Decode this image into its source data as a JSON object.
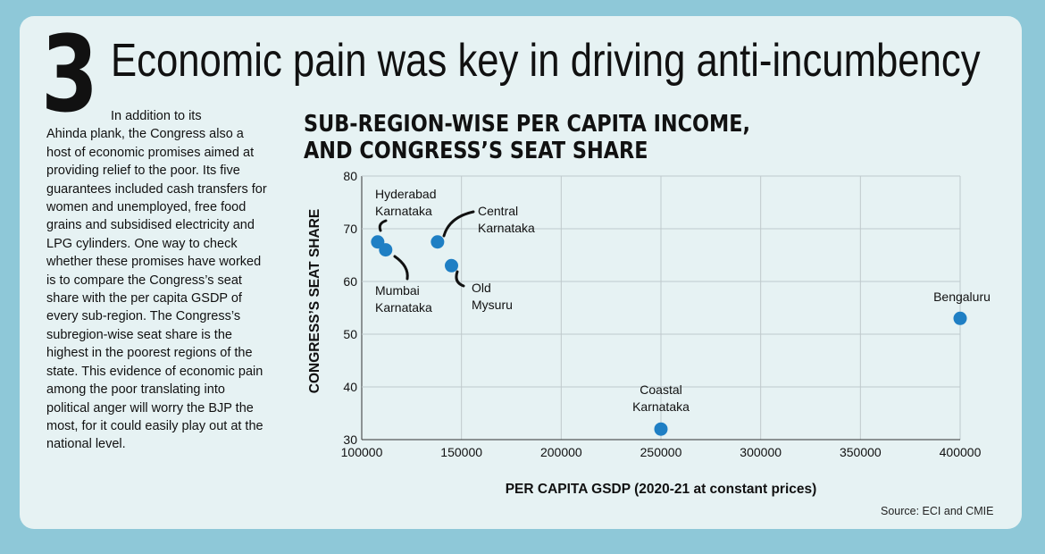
{
  "section_number": "3",
  "headline": "Economic pain was key in driving anti-incumbency",
  "body": {
    "first_line": "In addition to its",
    "rest": "Ahinda plank, the Congress also a host of economic promises aimed at providing relief to the poor. Its five guarantees included cash transfers for women and unemployed, free food grains and subsidised electricity and LPG cylinders. One way to check whether these promises have worked is to compare the Congress’s seat share with the per capita GSDP of every sub-region. The Congress’s subregion-wise seat share is the highest in the poorest regions of the state. This evidence of economic pain among the poor translating into political anger will worry the BJP the most, for it could easily play out at the national level."
  },
  "source": "Source: ECI and CMIE",
  "colors": {
    "point": "#1f7fc4",
    "background": "#8ec8d8",
    "card": "#e6f2f3"
  },
  "chart_data": {
    "type": "scatter",
    "title_lines": [
      "SUB-REGION-WISE PER CAPITA INCOME,",
      "AND CONGRESS’S SEAT SHARE"
    ],
    "xlabel": "PER CAPITA GSDP (2020-21 at constant prices)",
    "ylabel": "CONGRESS’S SEAT SHARE",
    "xlim": [
      100000,
      400000
    ],
    "ylim": [
      30,
      80
    ],
    "xticks": [
      100000,
      150000,
      200000,
      250000,
      300000,
      350000,
      400000
    ],
    "yticks": [
      30,
      40,
      50,
      60,
      70,
      80
    ],
    "grid": true,
    "points": [
      {
        "label": [
          "Hyderabad",
          "Karnataka"
        ],
        "x": 108000,
        "y": 67.5
      },
      {
        "label": [
          "Mumbai",
          "Karnataka"
        ],
        "x": 112000,
        "y": 66
      },
      {
        "label": [
          "Central",
          "Karnataka"
        ],
        "x": 138000,
        "y": 67.5
      },
      {
        "label": [
          "Old",
          "Mysuru"
        ],
        "x": 145000,
        "y": 63
      },
      {
        "label": [
          "Coastal",
          "Karnataka"
        ],
        "x": 250000,
        "y": 32
      },
      {
        "label": [
          "Bengaluru"
        ],
        "x": 400000,
        "y": 53
      }
    ]
  }
}
